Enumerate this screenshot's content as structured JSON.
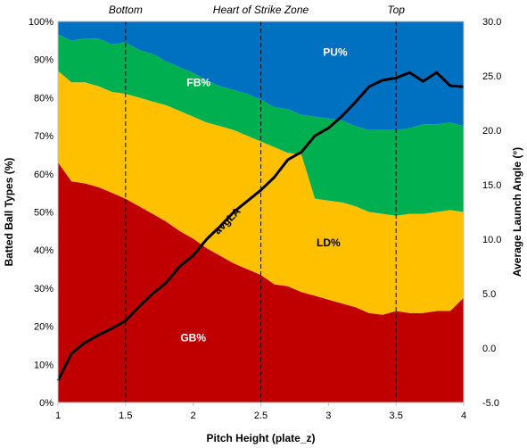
{
  "chart_data": {
    "type": "area",
    "x": [
      1,
      1.1,
      1.2,
      1.3,
      1.4,
      1.5,
      1.6,
      1.7,
      1.8,
      1.9,
      2,
      2.1,
      2.2,
      2.3,
      2.4,
      2.5,
      2.6,
      2.7,
      2.8,
      2.9,
      3,
      3.1,
      3.2,
      3.3,
      3.4,
      3.5,
      3.6,
      3.7,
      3.8,
      3.9,
      4
    ],
    "xlim": [
      1,
      4
    ],
    "xticks": [
      "1",
      "1.5",
      "2",
      "2.5",
      "3",
      "3.5",
      "4"
    ],
    "xlabel": "Pitch Height (plate_z)",
    "ylim": [
      0,
      100
    ],
    "yticks": [
      "0%",
      "10%",
      "20%",
      "30%",
      "40%",
      "50%",
      "60%",
      "70%",
      "80%",
      "90%",
      "100%"
    ],
    "ylabel": "Batted Ball Types (%)",
    "y2lim": [
      -5,
      30
    ],
    "y2ticks": [
      "-5.0",
      "0.0",
      "5.0",
      "10.0",
      "15.0",
      "20.0",
      "25.0",
      "30.0"
    ],
    "y2label": "Average Launch Angle (°)",
    "vlines": [
      1.5,
      2.5,
      3.5
    ],
    "zone_labels": [
      {
        "text": "Bottom",
        "x": 1.5
      },
      {
        "text": "Heart of Strike Zone",
        "x": 2.5
      },
      {
        "text": "Top",
        "x": 3.5
      }
    ],
    "series": [
      {
        "name": "GB%",
        "color": "#C00000",
        "label_at": [
          2,
          16
        ],
        "values": [
          63,
          58,
          57.5,
          56.5,
          55,
          53.5,
          51.5,
          49.5,
          47.5,
          45,
          43,
          40.5,
          38.5,
          36.5,
          35,
          33.5,
          31,
          30.5,
          29,
          28,
          27,
          26,
          25,
          23.5,
          23,
          24,
          23.5,
          23.5,
          24,
          24,
          27.5
        ]
      },
      {
        "name": "LD%",
        "color": "#FFC000",
        "label_at": [
          3,
          41
        ],
        "values": [
          24,
          26,
          26.5,
          26.5,
          26.5,
          27.5,
          28.5,
          29.5,
          30.5,
          31.5,
          32,
          33,
          34,
          35,
          35,
          35,
          36,
          35,
          36,
          25.5,
          26,
          26.5,
          26.5,
          26.5,
          26.5,
          25,
          26,
          26,
          26,
          26.5,
          22.5
        ]
      },
      {
        "name": "FB%",
        "color": "#00B050",
        "label_at": [
          2.04,
          83
        ],
        "values": [
          9.5,
          11,
          11.5,
          12.5,
          12.5,
          13.5,
          12.5,
          12.5,
          11.5,
          11.5,
          11.5,
          11,
          10.5,
          10.5,
          11,
          11,
          10.5,
          11.5,
          10.5,
          21.5,
          21.5,
          21.5,
          21,
          21.5,
          22,
          22.5,
          22.5,
          23.5,
          23,
          23,
          22.5
        ]
      },
      {
        "name": "PU%",
        "color": "#0070C0",
        "label_at": [
          3.05,
          91
        ],
        "values": [
          3.5,
          5,
          4.5,
          4.5,
          6,
          5.5,
          7.5,
          8.5,
          10.5,
          12,
          13.5,
          15.5,
          17,
          18,
          19,
          20.5,
          22.5,
          23,
          24.5,
          25,
          25.5,
          26,
          27.5,
          28.5,
          28.5,
          28.5,
          28,
          27,
          27,
          26.5,
          27.5
        ]
      }
    ],
    "line": {
      "name": "avgLA",
      "axis": "secondary",
      "color": "#000000",
      "label_at": [
        2.27,
        47
      ],
      "values": [
        -3,
        -0.5,
        0.5,
        1.2,
        1.8,
        2.5,
        3.8,
        5,
        6,
        7.5,
        8.5,
        10,
        11.2,
        12.5,
        13.5,
        14.5,
        15.7,
        17.3,
        18,
        19.5,
        20.2,
        21.3,
        22.6,
        24,
        24.6,
        24.8,
        25.3,
        24.5,
        25.3,
        24.1,
        24
      ]
    }
  }
}
